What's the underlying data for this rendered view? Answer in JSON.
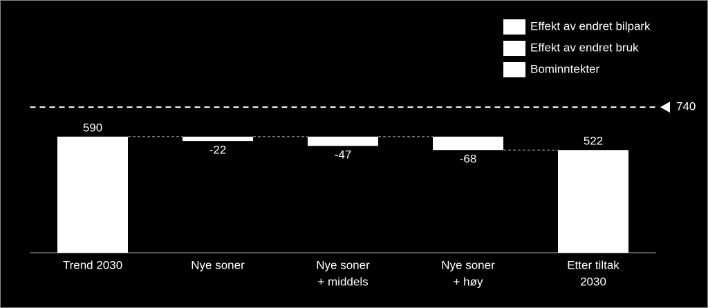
{
  "chart_data": {
    "type": "waterfall",
    "categories": [
      [
        "Trend 2030"
      ],
      [
        "Nye soner"
      ],
      [
        "Nye soner",
        "+ middels"
      ],
      [
        "Nye soner",
        "+ høy"
      ],
      [
        "Etter tiltak",
        "2030"
      ]
    ],
    "values": [
      590,
      -22,
      -47,
      -68,
      522
    ],
    "color": "#ffffff",
    "ylim": [
      0,
      800
    ],
    "reference_line": {
      "value": 740,
      "label": "740"
    },
    "legend": [
      {
        "name": "Effekt av endret bilpark",
        "color": "#ffffff"
      },
      {
        "name": "Effekt av endret bruk",
        "color": "#ffffff"
      },
      {
        "name": "Bominntekter",
        "color": "#ffffff"
      }
    ]
  }
}
